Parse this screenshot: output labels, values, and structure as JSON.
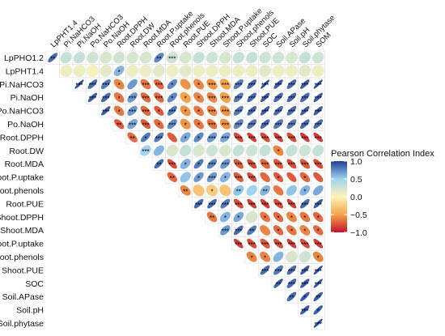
{
  "chart_data": {
    "type": "heatmap",
    "title": "",
    "layout": "upper-triangle correlation matrix with ellipses",
    "columns": [
      "LpPHT1.4",
      "Pi.NaHCO3",
      "Pi.NaOH",
      "Po.NaHCO3",
      "Po.NaOH",
      "Root.DPPH",
      "Root.DW",
      "Root.MDA",
      "Root.P.uptake",
      "Root.phenols",
      "Root.PUE",
      "Shoot.DPPH",
      "Shoot.MDA",
      "Shoot.P.uptake",
      "Shoot.phenols",
      "Shoot.PUE",
      "SOC",
      "Soil.APase",
      "Soil.pH",
      "Soil.phytase",
      "SOM"
    ],
    "rows": [
      "LpPHO1.2",
      "LpPHT1.4",
      "Pi.NaHCO3",
      "Pi.NaOH",
      "Po.NaHCO3",
      "Po.NaOH",
      "Root.DPPH",
      "Root.DW",
      "Root.MDA",
      "Root.P.uptake",
      "Root.phenols",
      "Root.PUE",
      "Shoot.DPPH",
      "Shoot.MDA",
      "Shoot.P.uptake",
      "Shoot.phenols",
      "Shoot.PUE",
      "SOC",
      "Soil.APase",
      "Soil.pH",
      "Soil.phytase"
    ],
    "matrix": [
      [
        0.85,
        0.3,
        0.3,
        0.25,
        0.2,
        0.25,
        0.2,
        0.2,
        0.75,
        0.25,
        0.2,
        0.3,
        0.25,
        0.2,
        0.3,
        0.3,
        0.25,
        0.25,
        0.2,
        0.3,
        0.25
      ],
      [
        null,
        0.1,
        0.1,
        0.05,
        0.15,
        0.6,
        0.1,
        0.1,
        0.15,
        0.1,
        0.15,
        0.1,
        0.1,
        0.1,
        0.1,
        0.1,
        0.15,
        0.1,
        0.1,
        0.15,
        0.1
      ],
      [
        null,
        null,
        0.95,
        0.85,
        0.8,
        -0.6,
        0.7,
        -0.65,
        -0.7,
        0.75,
        -0.55,
        -0.6,
        -0.55,
        -0.5,
        0.8,
        0.85,
        0.95,
        0.9,
        0.85,
        0.9,
        0.95
      ],
      [
        null,
        null,
        null,
        0.9,
        0.85,
        -0.65,
        0.7,
        -0.7,
        -0.7,
        0.75,
        -0.5,
        -0.6,
        -0.6,
        -0.5,
        0.8,
        0.85,
        0.9,
        0.85,
        0.85,
        0.85,
        0.9
      ],
      [
        null,
        null,
        null,
        null,
        0.9,
        -0.65,
        0.7,
        -0.7,
        -0.75,
        0.8,
        -0.55,
        -0.65,
        -0.6,
        -0.55,
        0.8,
        0.85,
        0.9,
        0.85,
        0.85,
        0.9,
        0.9
      ],
      [
        null,
        null,
        null,
        null,
        null,
        -0.75,
        0.65,
        -0.75,
        -0.7,
        0.75,
        -0.55,
        -0.65,
        -0.65,
        -0.55,
        0.75,
        0.8,
        0.85,
        0.8,
        0.8,
        0.85,
        0.85
      ],
      [
        null,
        null,
        null,
        null,
        null,
        null,
        -0.7,
        0.8,
        0.8,
        -0.75,
        0.65,
        0.75,
        0.7,
        0.65,
        -0.8,
        -0.85,
        -0.8,
        -0.85,
        -0.8,
        -0.85,
        -0.85
      ],
      [
        null,
        null,
        null,
        null,
        null,
        null,
        null,
        0.5,
        0.6,
        0.2,
        0.3,
        0.2,
        0.25,
        0.2,
        0.3,
        0.25,
        0.3,
        -0.6,
        0.3,
        0.25,
        0.3
      ],
      [
        null,
        null,
        null,
        null,
        null,
        null,
        null,
        null,
        0.85,
        -0.8,
        0.6,
        0.8,
        0.75,
        0.7,
        -0.75,
        -0.8,
        -0.7,
        -0.75,
        -0.8,
        -0.75,
        -0.8
      ],
      [
        null,
        null,
        null,
        null,
        null,
        null,
        null,
        null,
        null,
        -0.7,
        0.55,
        0.7,
        0.7,
        0.6,
        -0.75,
        -0.8,
        -0.7,
        -0.75,
        -0.75,
        -0.7,
        -0.75
      ],
      [
        null,
        null,
        null,
        null,
        null,
        null,
        null,
        null,
        null,
        null,
        -0.6,
        -0.3,
        -0.25,
        -0.3,
        0.55,
        0.5,
        0.6,
        -0.65,
        0.55,
        0.6,
        0.65
      ],
      [
        null,
        null,
        null,
        null,
        null,
        null,
        null,
        null,
        null,
        null,
        null,
        0.85,
        0.85,
        0.8,
        -0.8,
        -0.85,
        -0.85,
        -0.8,
        -0.85,
        0.85,
        0.9
      ],
      [
        null,
        null,
        null,
        null,
        null,
        null,
        null,
        null,
        null,
        null,
        null,
        null,
        -0.65,
        0.6,
        0.65,
        0.2,
        -0.65,
        -0.7,
        -0.6,
        -0.65,
        -0.7
      ],
      [
        null,
        null,
        null,
        null,
        null,
        null,
        null,
        null,
        null,
        null,
        null,
        null,
        null,
        0.7,
        0.85,
        0.8,
        -0.6,
        -0.7,
        -0.65,
        -0.6,
        -0.7
      ],
      [
        null,
        null,
        null,
        null,
        null,
        null,
        null,
        null,
        null,
        null,
        null,
        null,
        null,
        null,
        -0.85,
        -0.8,
        -0.75,
        -0.8,
        -0.85,
        -0.8,
        -0.85
      ],
      [
        null,
        null,
        null,
        null,
        null,
        null,
        null,
        null,
        null,
        null,
        null,
        null,
        null,
        null,
        null,
        -0.6,
        -0.6,
        0.6,
        0.2,
        0.25,
        -0.6
      ],
      [
        null,
        null,
        null,
        null,
        null,
        null,
        null,
        null,
        null,
        null,
        null,
        null,
        null,
        null,
        null,
        null,
        0.85,
        0.8,
        0.85,
        0.9,
        0.95
      ],
      [
        null,
        null,
        null,
        null,
        null,
        null,
        null,
        null,
        null,
        null,
        null,
        null,
        null,
        null,
        null,
        null,
        null,
        0.9,
        0.85,
        0.9,
        0.95
      ],
      [
        null,
        null,
        null,
        null,
        null,
        null,
        null,
        null,
        null,
        null,
        null,
        null,
        null,
        null,
        null,
        null,
        null,
        null,
        0.85,
        0.9,
        0.9
      ],
      [
        null,
        null,
        null,
        null,
        null,
        null,
        null,
        null,
        null,
        null,
        null,
        null,
        null,
        null,
        null,
        null,
        null,
        null,
        null,
        0.9,
        0.9
      ],
      [
        null,
        null,
        null,
        null,
        null,
        null,
        null,
        null,
        null,
        null,
        null,
        null,
        null,
        null,
        null,
        null,
        null,
        null,
        null,
        null,
        0.95
      ]
    ],
    "significance": [
      [
        "**",
        "",
        "",
        "",
        "",
        "",
        "",
        "",
        "**",
        "***",
        "",
        "",
        "",
        "",
        "",
        "",
        "",
        "",
        "",
        "",
        ""
      ],
      [
        null,
        "",
        "",
        "",
        "",
        "*",
        "",
        "",
        "",
        "",
        "",
        "",
        "",
        "",
        "",
        "",
        "",
        "",
        "",
        "",
        ""
      ],
      [
        null,
        null,
        "***",
        "***",
        "***",
        "*",
        "",
        "***",
        "***",
        "*",
        "",
        "*",
        "***",
        "***",
        "***",
        "***",
        "***",
        "***",
        "***",
        "***",
        "***"
      ],
      [
        null,
        null,
        null,
        "***",
        "***",
        "*",
        "***",
        "***",
        "***",
        "*",
        "*",
        "*",
        "***",
        "***",
        "***",
        "***",
        "***",
        "***",
        "***",
        "***",
        "***"
      ],
      [
        null,
        null,
        null,
        null,
        "***",
        "*",
        "***",
        "***",
        "*",
        "***",
        "*",
        "*",
        "***",
        "***",
        "***",
        "***",
        "***",
        "***",
        "***",
        "***",
        "***"
      ],
      [
        null,
        null,
        null,
        null,
        null,
        "**",
        "***",
        "***",
        "*",
        "***",
        "*",
        "*",
        "***",
        "***",
        "***",
        "***",
        "***",
        "***",
        "***",
        "***",
        "***"
      ],
      [
        null,
        null,
        null,
        null,
        null,
        null,
        "**",
        "*",
        "***",
        "",
        "*",
        "*",
        "***",
        "***",
        "***",
        "***",
        "***",
        "***",
        "***",
        "***",
        "***"
      ],
      [
        null,
        null,
        null,
        null,
        null,
        null,
        null,
        "***",
        "",
        "",
        "",
        "",
        "",
        "",
        "",
        "",
        "",
        "*",
        "",
        "",
        ""
      ],
      [
        null,
        null,
        null,
        null,
        null,
        null,
        null,
        null,
        "**",
        "***",
        "*",
        "*",
        "***",
        "***",
        "***",
        "***",
        "***",
        "***",
        "***",
        "***",
        "***"
      ],
      [
        null,
        null,
        null,
        null,
        null,
        null,
        null,
        null,
        null,
        "**",
        "",
        "*",
        "***",
        "*",
        "***",
        "***",
        "",
        "*",
        "",
        "*",
        ""
      ],
      [
        null,
        null,
        null,
        null,
        null,
        null,
        null,
        null,
        null,
        null,
        "**",
        "",
        "*",
        "",
        "**",
        "",
        "**",
        "",
        "",
        "*",
        ""
      ],
      [
        null,
        null,
        null,
        null,
        null,
        null,
        null,
        null,
        null,
        null,
        null,
        "***",
        "***",
        "***",
        "***",
        "***",
        "***",
        "***",
        "***",
        "***",
        "***"
      ],
      [
        null,
        null,
        null,
        null,
        null,
        null,
        null,
        null,
        null,
        null,
        null,
        null,
        "**",
        "*",
        "*",
        "",
        "*",
        "*",
        "*",
        "*",
        "*"
      ],
      [
        null,
        null,
        null,
        null,
        null,
        null,
        null,
        null,
        null,
        null,
        null,
        null,
        null,
        "***",
        "***",
        "**",
        "",
        "*",
        "*",
        "*",
        "*"
      ],
      [
        null,
        null,
        null,
        null,
        null,
        null,
        null,
        null,
        null,
        null,
        null,
        null,
        null,
        null,
        "***",
        "***",
        "***",
        "***",
        "***",
        "***",
        "***"
      ],
      [
        null,
        null,
        null,
        null,
        null,
        null,
        null,
        null,
        null,
        null,
        null,
        null,
        null,
        null,
        null,
        "*",
        "*",
        "",
        "",
        "",
        "*"
      ],
      [
        null,
        null,
        null,
        null,
        null,
        null,
        null,
        null,
        null,
        null,
        null,
        null,
        null,
        null,
        null,
        null,
        "***",
        "***",
        "***",
        "***",
        "***"
      ],
      [
        null,
        null,
        null,
        null,
        null,
        null,
        null,
        null,
        null,
        null,
        null,
        null,
        null,
        null,
        null,
        null,
        null,
        "**",
        "***",
        "***",
        "***"
      ],
      [
        null,
        null,
        null,
        null,
        null,
        null,
        null,
        null,
        null,
        null,
        null,
        null,
        null,
        null,
        null,
        null,
        null,
        null,
        "**",
        "*",
        "**"
      ],
      [
        null,
        null,
        null,
        null,
        null,
        null,
        null,
        null,
        null,
        null,
        null,
        null,
        null,
        null,
        null,
        null,
        null,
        null,
        null,
        "***",
        "*"
      ],
      [
        null,
        null,
        null,
        null,
        null,
        null,
        null,
        null,
        null,
        null,
        null,
        null,
        null,
        null,
        null,
        null,
        null,
        null,
        null,
        null,
        "***"
      ]
    ],
    "legend": {
      "title": "Pearson Correlation Index",
      "ticks": [
        1.0,
        0.5,
        0.0,
        -0.5,
        -1.0
      ],
      "tick_labels": [
        "1.0",
        "0.5",
        "0.0",
        "−0.5",
        "−1.0"
      ],
      "range": [
        -1.0,
        1.0
      ],
      "placement": "right"
    },
    "colors": {
      "neg_strong": "#c8102e",
      "neg_mid": "#f3a34a",
      "neutral": "#fff3b8",
      "pos_mid": "#9fd3ef",
      "pos_strong": "#1f3f9a",
      "grid": "#e6e6e6"
    }
  }
}
